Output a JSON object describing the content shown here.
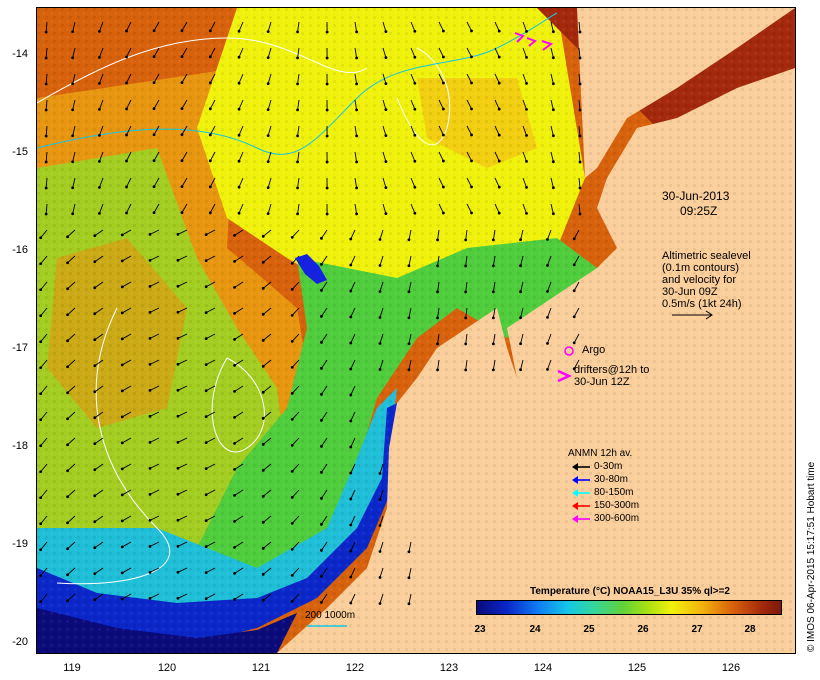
{
  "map": {
    "title_date": "30-Jun-2013",
    "title_time": "09:25Z",
    "colors": {
      "land": "#fbcf9c",
      "deep_water": "#0a0a7a",
      "warm": "#d8620c",
      "mid": "#f0f20c",
      "cool": "#60d33a"
    }
  },
  "axes": {
    "y_ticks": [
      "-14",
      "-15",
      "-16",
      "-17",
      "-18",
      "-19",
      "-20"
    ],
    "x_ticks": [
      "119",
      "120",
      "121",
      "122",
      "123",
      "124",
      "125",
      "126"
    ]
  },
  "annotations": {
    "altimetry": [
      "Altimetric sealevel",
      "(0.1m contours)",
      "and velocity for",
      "30-Jun 09Z",
      "0.5m/s (1kt 24h)"
    ],
    "argo_label": "Argo",
    "drifters_line1": "drifters@12h to",
    "drifters_line2": "30-Jun 12Z"
  },
  "legend": {
    "title": "ANMN 12h av.",
    "items": [
      {
        "label": "0-30m",
        "color": "#000000"
      },
      {
        "label": "30-80m",
        "color": "#0000ff"
      },
      {
        "label": "80-150m",
        "color": "#00ffff"
      },
      {
        "label": "150-300m",
        "color": "#ff0000"
      },
      {
        "label": "300-600m",
        "color": "#ff00ff"
      }
    ]
  },
  "colorbar": {
    "title": "Temperature (°C) NOAA15_L3U 35% ql>=2",
    "ticks": [
      "23",
      "24",
      "25",
      "26",
      "27",
      "28"
    ]
  },
  "scale_label": "200 1000m",
  "credit": "© IMOS 06-Apr-2015 15:17:51 Hobart time"
}
